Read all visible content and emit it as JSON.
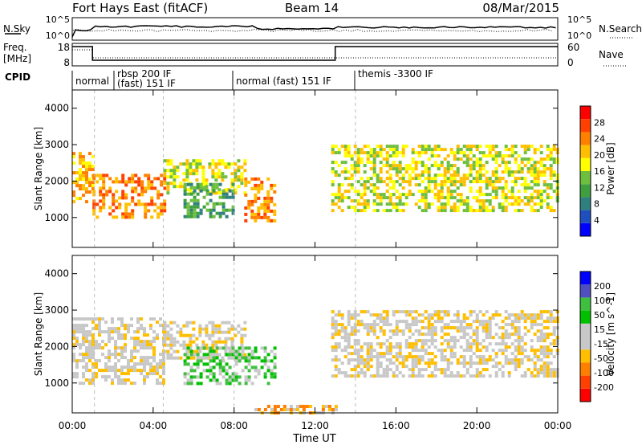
{
  "header": {
    "site": "Fort Hays East (fitACF)",
    "beam": "Beam 14",
    "date": "08/Mar/2015"
  },
  "strips": {
    "nsky_label": "N.Sky",
    "nsky_ticks": [
      "10^5",
      "10^0"
    ],
    "nsearch_label": "N.Search",
    "freq_label_1": "Freq.",
    "freq_label_2": "[MHz]",
    "freq_ticks": [
      "18",
      "8"
    ],
    "nave_label": "Nave",
    "nave_ticks": [
      "60",
      "0"
    ],
    "cpid_label": "CPID",
    "cpid_segments": [
      {
        "line1": "normal",
        "line2": ""
      },
      {
        "line1": "rbsp 200 IF",
        "line2": "(fast) 151 IF"
      },
      {
        "line1": "normal (fast) 151 IF",
        "line2": ""
      },
      {
        "line1": "themis -3300 IF",
        "line2": ""
      }
    ]
  },
  "colors": {
    "power": [
      "#0000ff",
      "#1f4fbf",
      "#2f7f7f",
      "#3f9f3f",
      "#6fbf3f",
      "#ffff00",
      "#ffbf00",
      "#ff8000",
      "#ff4000",
      "#ff0000"
    ],
    "velocity": [
      "#ff0000",
      "#ff4000",
      "#ff8000",
      "#ffbf00",
      "#c8c8c8",
      "#c8c8c8",
      "#00c000",
      "#3fbf3f",
      "#4f4fbf",
      "#0000ff"
    ]
  },
  "chart_data": [
    {
      "type": "heatmap",
      "title": "Power",
      "xlabel": "",
      "ylabel": "Slant Range [km]",
      "colorbar_label": "Power [dB]",
      "colorbar_ticks": [
        "4",
        "8",
        "12",
        "16",
        "20",
        "24",
        "28"
      ],
      "x_ticks": [
        "00:00",
        "04:00",
        "08:00",
        "12:00",
        "16:00",
        "20:00",
        "00:00"
      ],
      "y_ticks": [
        "1000",
        "2000",
        "3000",
        "4000"
      ],
      "xlim_hours": [
        0,
        24
      ],
      "ylim_km": [
        180,
        4500
      ],
      "regions": [
        {
          "t0": 0.0,
          "t1": 1.0,
          "r0": 1450,
          "r1": 2800,
          "level": 6
        },
        {
          "t0": 1.0,
          "t1": 4.5,
          "r0": 1000,
          "r1": 2200,
          "level": 7
        },
        {
          "t0": 4.5,
          "t1": 8.5,
          "r0": 1700,
          "r1": 2600,
          "level": 5
        },
        {
          "t0": 5.5,
          "t1": 8.0,
          "r0": 1050,
          "r1": 1950,
          "level": 3
        },
        {
          "t0": 8.5,
          "t1": 10.0,
          "r0": 950,
          "r1": 2100,
          "level": 7
        },
        {
          "t0": 12.8,
          "t1": 24.0,
          "r0": 1200,
          "r1": 3000,
          "level": 5
        }
      ]
    },
    {
      "type": "heatmap",
      "title": "Velocity",
      "xlabel": "Time UT",
      "ylabel": "Slant Range [km]",
      "colorbar_label": "Velocity [m s^-1]",
      "colorbar_ticks": [
        "-200",
        "-100",
        "-50",
        "-15",
        "15",
        "50",
        "100",
        "200"
      ],
      "x_ticks": [
        "00:00",
        "04:00",
        "08:00",
        "12:00",
        "16:00",
        "20:00",
        "00:00"
      ],
      "y_ticks": [
        "1000",
        "2000",
        "3000",
        "4000"
      ],
      "xlim_hours": [
        0,
        24
      ],
      "ylim_km": [
        180,
        4500
      ],
      "regions": [
        {
          "t0": 0.0,
          "t1": 4.5,
          "r0": 1000,
          "r1": 2800,
          "level": 4
        },
        {
          "t0": 4.5,
          "t1": 8.5,
          "r0": 1700,
          "r1": 2700,
          "level": 4
        },
        {
          "t0": 5.5,
          "t1": 10.0,
          "r0": 1000,
          "r1": 2000,
          "level": 6
        },
        {
          "t0": 12.8,
          "t1": 24.0,
          "r0": 1200,
          "r1": 3000,
          "level": 4
        },
        {
          "t0": 9.0,
          "t1": 13.0,
          "r0": 180,
          "r1": 400,
          "level": 3
        }
      ]
    }
  ]
}
